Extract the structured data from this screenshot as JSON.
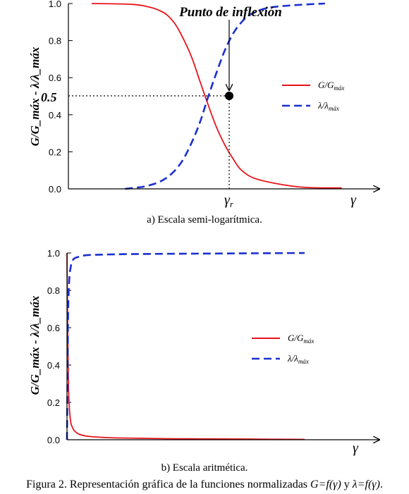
{
  "colors": {
    "G": "#e8141b",
    "lambda": "#1a2fd0",
    "axis": "#000000"
  },
  "chart_data": [
    {
      "type": "line",
      "ylabel": "G/G_máx - λ/λ_máx",
      "ylim": [
        0,
        1
      ],
      "yticks": [
        "0.0",
        "0.2",
        "0.4",
        "0.6",
        "0.8",
        "1.0"
      ],
      "xlabel": "γ",
      "xscale": "log",
      "annotation": "Punto de inflexión",
      "inflection": {
        "y_label": "0.5",
        "y": 0.5,
        "x_label": "γ",
        "x_label_sub": "r"
      },
      "legend_position": "right",
      "series": [
        {
          "name": "G/Gmáx",
          "base": "G/G",
          "sub": "máx",
          "style": "solid",
          "x": [
            0,
            0.5,
            0.7,
            0.8,
            0.9,
            1.0,
            1.1,
            1.2,
            1.3,
            1.4,
            1.5,
            1.6,
            1.7,
            1.8,
            2.0,
            2.5,
            3.0
          ],
          "values": [
            1.0,
            0.995,
            0.98,
            0.965,
            0.94,
            0.89,
            0.81,
            0.71,
            0.58,
            0.45,
            0.33,
            0.235,
            0.16,
            0.1,
            0.05,
            0.01,
            0.005
          ]
        },
        {
          "name": "λ/λmáx",
          "base": "λ/λ",
          "sub": "máx",
          "style": "dashed",
          "x": [
            0.4,
            0.5,
            0.6,
            0.7,
            0.8,
            0.9,
            1.0,
            1.1,
            1.2,
            1.3,
            1.4,
            1.5,
            1.6,
            1.7,
            1.8,
            1.9,
            2.1,
            2.4,
            2.8
          ],
          "values": [
            0.0,
            0.005,
            0.01,
            0.02,
            0.035,
            0.06,
            0.1,
            0.16,
            0.25,
            0.36,
            0.5,
            0.63,
            0.75,
            0.84,
            0.9,
            0.94,
            0.975,
            0.99,
            1.0
          ]
        }
      ]
    },
    {
      "type": "line",
      "ylabel": "G/G_máx - λ/λ_máx",
      "ylim": [
        0,
        1
      ],
      "yticks": [
        "0.0",
        "0.2",
        "0.4",
        "0.6",
        "0.8",
        "1.0"
      ],
      "xlabel": "γ",
      "xscale": "linear",
      "legend_position": "right",
      "series": [
        {
          "name": "G/Gmáx",
          "base": "G/G",
          "sub": "máx",
          "style": "solid",
          "x": [
            0.0,
            0.003,
            0.006,
            0.01,
            0.015,
            0.02,
            0.03,
            0.05,
            0.08,
            0.12,
            0.2,
            0.35,
            0.5,
            1.0
          ],
          "values": [
            1.0,
            0.6,
            0.3,
            0.17,
            0.1,
            0.075,
            0.05,
            0.03,
            0.02,
            0.015,
            0.01,
            0.007,
            0.005,
            0.002
          ]
        },
        {
          "name": "λ/λmáx",
          "base": "λ/λ",
          "sub": "máx",
          "style": "dashed",
          "x": [
            0.0,
            0.002,
            0.004,
            0.006,
            0.01,
            0.015,
            0.02,
            0.03,
            0.05,
            0.08,
            0.12,
            0.2,
            0.35,
            0.6,
            1.0
          ],
          "values": [
            0.0,
            0.3,
            0.6,
            0.75,
            0.87,
            0.92,
            0.95,
            0.97,
            0.98,
            0.988,
            0.99,
            0.993,
            0.995,
            0.997,
            1.0
          ]
        }
      ]
    }
  ],
  "captions": {
    "a": "a) Escala semi-logarítmica.",
    "b": "b) Escala aritmética.",
    "figure_parts": [
      {
        "t": "Figura 2. Representación gráfica de la funciones normalizadas ",
        "i": false
      },
      {
        "t": "G=f(γ)",
        "i": true
      },
      {
        "t": " y ",
        "i": false
      },
      {
        "t": "λ=f(γ)",
        "i": true
      },
      {
        "t": ".",
        "i": false
      }
    ]
  }
}
